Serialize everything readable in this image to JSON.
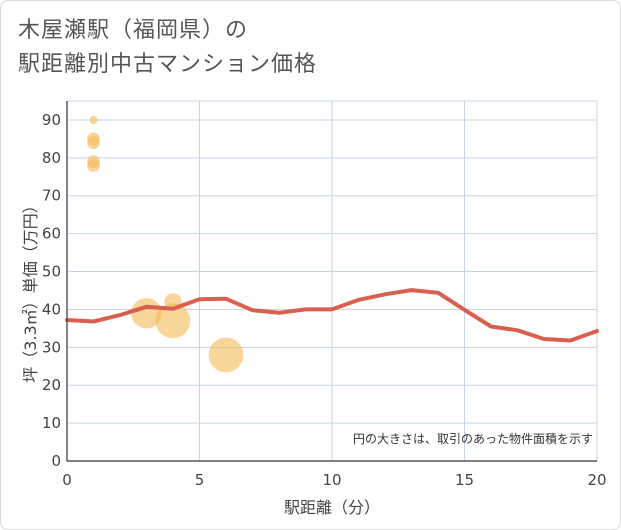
{
  "title": {
    "line1": "木屋瀬駅（福岡県）の",
    "line2": "駅距離別中古マンション価格"
  },
  "chart_data": {
    "type": "scatter",
    "xlabel": "駅距離（分）",
    "ylabel": "坪（3.3㎡）単価（万円）",
    "xlim": [
      0,
      20
    ],
    "ylim": [
      0,
      95
    ],
    "xticks": [
      0,
      5,
      10,
      15,
      20
    ],
    "yticks": [
      0,
      10,
      20,
      30,
      40,
      50,
      60,
      70,
      80,
      90
    ],
    "grid": true,
    "note": "円の大きさは、取引のあった物件面積を示す",
    "colors": {
      "bubble": "#f3b955",
      "line": "#d9604e",
      "grid": "#c5d3e6"
    },
    "bubbles": [
      {
        "x": 1,
        "y": 90,
        "size": 1
      },
      {
        "x": 1,
        "y": 85,
        "size": 2
      },
      {
        "x": 1,
        "y": 84,
        "size": 2
      },
      {
        "x": 1,
        "y": 79,
        "size": 2
      },
      {
        "x": 1,
        "y": 78,
        "size": 2
      },
      {
        "x": 3,
        "y": 39,
        "size": 6
      },
      {
        "x": 4,
        "y": 42,
        "size": 3
      },
      {
        "x": 4,
        "y": 37,
        "size": 7
      },
      {
        "x": 6,
        "y": 28,
        "size": 7
      }
    ],
    "series": [
      {
        "values": [
          [
            0,
            37.2
          ],
          [
            1,
            36.8
          ],
          [
            2,
            38.5
          ],
          [
            3,
            40.7
          ],
          [
            4,
            40.2
          ],
          [
            5,
            42.7
          ],
          [
            6,
            42.8
          ],
          [
            7,
            39.8
          ],
          [
            8,
            39.1
          ],
          [
            9,
            40.0
          ],
          [
            10,
            40.0
          ],
          [
            11,
            42.5
          ],
          [
            12,
            44.0
          ],
          [
            13,
            45.1
          ],
          [
            14,
            44.4
          ],
          [
            15,
            39.9
          ],
          [
            16,
            35.5
          ],
          [
            17,
            34.5
          ],
          [
            18,
            32.2
          ],
          [
            19,
            31.8
          ],
          [
            20,
            34.3
          ]
        ]
      }
    ]
  }
}
